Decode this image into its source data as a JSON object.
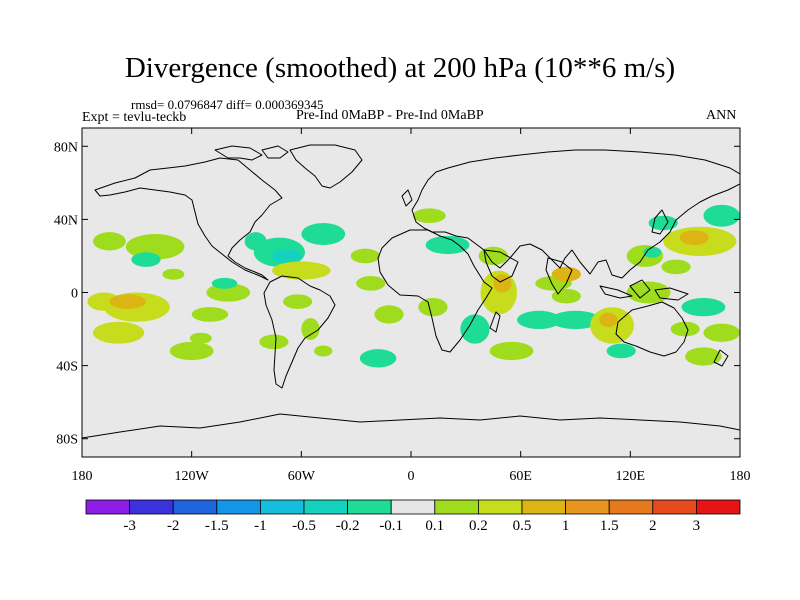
{
  "title": "Divergence (smoothed) at 200 hPa (10**6 m/s)",
  "stats": "rmsd= 0.0796847 diff= 0.000369345",
  "experiment": "Expt = tevlu-teckb",
  "case": "Pre-Ind 0MaBP - Pre-Ind 0MaBP",
  "season": "ANN",
  "colors": {
    "background": "#e8e8e8",
    "coast": "#000000",
    "palette": [
      "#8c1ee6",
      "#3c32dc",
      "#1e64dc",
      "#1496e6",
      "#14bedc",
      "#14d2be",
      "#1edc96",
      "#e6e6e6",
      "#a0dc1e",
      "#c8dc1e",
      "#dcb414",
      "#e6961e",
      "#e6781e",
      "#e64b1e",
      "#e61414"
    ]
  },
  "legend_labels": [
    "-3",
    "-2",
    "-1.5",
    "-1",
    "-0.5",
    "-0.2",
    "-0.1",
    "0.1",
    "0.2",
    "0.5",
    "1",
    "1.5",
    "2",
    "3"
  ],
  "y_ticks": [
    {
      "label": "80N",
      "lat": 80
    },
    {
      "label": "40N",
      "lat": 40
    },
    {
      "label": "0",
      "lat": 0
    },
    {
      "label": "40S",
      "lat": -40
    },
    {
      "label": "80S",
      "lat": -80
    }
  ],
  "x_ticks": [
    {
      "label": "180",
      "lon": -180
    },
    {
      "label": "120W",
      "lon": -120
    },
    {
      "label": "60W",
      "lon": -60
    },
    {
      "label": "0",
      "lon": 0
    },
    {
      "label": "60E",
      "lon": 60
    },
    {
      "label": "120E",
      "lon": 120
    },
    {
      "label": "180",
      "lon": 180
    }
  ],
  "lat_range": [
    -90,
    90
  ],
  "lon_range": [
    -180,
    180
  ],
  "anomalies": [
    {
      "lon": -165,
      "lat": 28,
      "rx": 9,
      "ry": 5,
      "level": 0.15
    },
    {
      "lon": -168,
      "lat": -5,
      "rx": 9,
      "ry": 5,
      "level": 0.3
    },
    {
      "lon": -160,
      "lat": -22,
      "rx": 14,
      "ry": 6,
      "level": 0.3
    },
    {
      "lon": -140,
      "lat": 25,
      "rx": 16,
      "ry": 7,
      "level": 0.15
    },
    {
      "lon": -145,
      "lat": 18,
      "rx": 8,
      "ry": 4,
      "level": -0.15
    },
    {
      "lon": -130,
      "lat": 10,
      "rx": 6,
      "ry": 3,
      "level": 0.15
    },
    {
      "lon": -150,
      "lat": -8,
      "rx": 18,
      "ry": 8,
      "level": 0.25
    },
    {
      "lon": -155,
      "lat": -5,
      "rx": 10,
      "ry": 4,
      "level": 0.6
    },
    {
      "lon": -120,
      "lat": -32,
      "rx": 12,
      "ry": 5,
      "level": 0.15
    },
    {
      "lon": -115,
      "lat": -25,
      "rx": 6,
      "ry": 3,
      "level": 0.15
    },
    {
      "lon": -100,
      "lat": 0,
      "rx": 12,
      "ry": 5,
      "level": 0.15
    },
    {
      "lon": -102,
      "lat": 5,
      "rx": 7,
      "ry": 3,
      "level": -0.15
    },
    {
      "lon": -110,
      "lat": -12,
      "rx": 10,
      "ry": 4,
      "level": 0.15
    },
    {
      "lon": -85,
      "lat": 28,
      "rx": 6,
      "ry": 5,
      "level": -0.15
    },
    {
      "lon": -72,
      "lat": 22,
      "rx": 14,
      "ry": 8,
      "level": -0.15
    },
    {
      "lon": -68,
      "lat": 20,
      "rx": 8,
      "ry": 4,
      "level": -0.5
    },
    {
      "lon": -48,
      "lat": 32,
      "rx": 12,
      "ry": 6,
      "level": -0.15
    },
    {
      "lon": -60,
      "lat": 12,
      "rx": 16,
      "ry": 5,
      "level": 0.25
    },
    {
      "lon": -62,
      "lat": -5,
      "rx": 8,
      "ry": 4,
      "level": 0.15
    },
    {
      "lon": -75,
      "lat": -27,
      "rx": 8,
      "ry": 4,
      "level": 0.15
    },
    {
      "lon": -55,
      "lat": -20,
      "rx": 5,
      "ry": 6,
      "level": 0.15
    },
    {
      "lon": -48,
      "lat": -32,
      "rx": 5,
      "ry": 3,
      "level": 0.15
    },
    {
      "lon": -25,
      "lat": 20,
      "rx": 8,
      "ry": 4,
      "level": 0.15
    },
    {
      "lon": -22,
      "lat": 5,
      "rx": 8,
      "ry": 4,
      "level": 0.15
    },
    {
      "lon": -12,
      "lat": -12,
      "rx": 8,
      "ry": 5,
      "level": 0.15
    },
    {
      "lon": -18,
      "lat": -36,
      "rx": 10,
      "ry": 5,
      "level": -0.15
    },
    {
      "lon": 10,
      "lat": 42,
      "rx": 9,
      "ry": 4,
      "level": 0.15
    },
    {
      "lon": 20,
      "lat": 26,
      "rx": 12,
      "ry": 5,
      "level": -0.15
    },
    {
      "lon": 12,
      "lat": -8,
      "rx": 8,
      "ry": 5,
      "level": 0.15
    },
    {
      "lon": 35,
      "lat": -20,
      "rx": 8,
      "ry": 8,
      "level": -0.15
    },
    {
      "lon": 48,
      "lat": 0,
      "rx": 10,
      "ry": 12,
      "level": 0.3
    },
    {
      "lon": 50,
      "lat": 5,
      "rx": 5,
      "ry": 5,
      "level": 0.6
    },
    {
      "lon": 45,
      "lat": 20,
      "rx": 8,
      "ry": 5,
      "level": 0.15
    },
    {
      "lon": 55,
      "lat": -32,
      "rx": 12,
      "ry": 5,
      "level": 0.15
    },
    {
      "lon": 70,
      "lat": -15,
      "rx": 12,
      "ry": 5,
      "level": -0.15
    },
    {
      "lon": 78,
      "lat": 5,
      "rx": 10,
      "ry": 4,
      "level": 0.15
    },
    {
      "lon": 85,
      "lat": 10,
      "rx": 8,
      "ry": 4,
      "level": 0.6
    },
    {
      "lon": 85,
      "lat": -2,
      "rx": 8,
      "ry": 4,
      "level": 0.15
    },
    {
      "lon": 90,
      "lat": -15,
      "rx": 14,
      "ry": 5,
      "level": -0.15
    },
    {
      "lon": 110,
      "lat": -18,
      "rx": 12,
      "ry": 10,
      "level": 0.3
    },
    {
      "lon": 108,
      "lat": -15,
      "rx": 5,
      "ry": 4,
      "level": 0.6
    },
    {
      "lon": 115,
      "lat": -32,
      "rx": 8,
      "ry": 4,
      "level": -0.15
    },
    {
      "lon": 130,
      "lat": 0,
      "rx": 12,
      "ry": 6,
      "level": 0.15
    },
    {
      "lon": 128,
      "lat": 20,
      "rx": 10,
      "ry": 6,
      "level": 0.15
    },
    {
      "lon": 132,
      "lat": 22,
      "rx": 5,
      "ry": 3,
      "level": -0.15
    },
    {
      "lon": 145,
      "lat": 14,
      "rx": 8,
      "ry": 4,
      "level": 0.15
    },
    {
      "lon": 138,
      "lat": 38,
      "rx": 8,
      "ry": 4,
      "level": -0.15
    },
    {
      "lon": 158,
      "lat": 28,
      "rx": 20,
      "ry": 8,
      "level": 0.3
    },
    {
      "lon": 155,
      "lat": 30,
      "rx": 8,
      "ry": 4,
      "level": 0.8
    },
    {
      "lon": 170,
      "lat": 42,
      "rx": 10,
      "ry": 6,
      "level": -0.15
    },
    {
      "lon": 160,
      "lat": -8,
      "rx": 12,
      "ry": 5,
      "level": -0.15
    },
    {
      "lon": 170,
      "lat": -22,
      "rx": 10,
      "ry": 5,
      "level": 0.15
    },
    {
      "lon": 150,
      "lat": -20,
      "rx": 8,
      "ry": 4,
      "level": 0.15
    },
    {
      "lon": 160,
      "lat": -35,
      "rx": 10,
      "ry": 5,
      "level": 0.15
    }
  ]
}
